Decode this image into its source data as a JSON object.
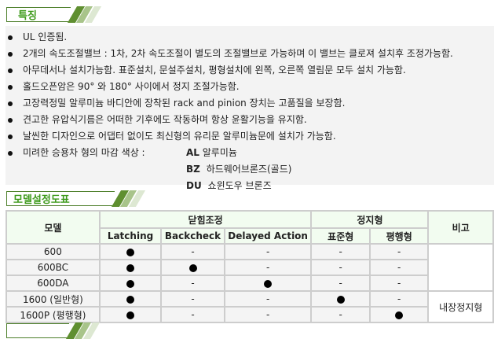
{
  "sections": {
    "features_title": "특징",
    "model_title": "모델설정도표",
    "next_title": ""
  },
  "colors": {
    "accent": "#3d9a1a",
    "border_green": "#4d7f2a",
    "stripe_dark": "#5f8f30",
    "stripe_mid": "#a8c48a",
    "stripe_light": "#dde8d2"
  },
  "features": [
    "UL 인증됨.",
    "2개의 속도조절밸브 : 1차, 2차 속도조절이 별도의 조절밸브로 가능하며 이 밸브는 클로져 설치후 조정가능함.",
    "아무데서나 설치가능함. 표준설치, 문설주설치, 평형설치에 왼쪽, 오른쪽 열림문 모두 설치 가능함.",
    "홀드오픈암은 90° 와 180° 사이에서 정지 조절가능함.",
    "고장력정밀 알루미늄 바디안에 장착된 rack and pinion 장치는 고품질을 보장함.",
    "견고한 유압식기름은 어떠한 기후에도 작동하며 항상 윤활기능을 유지함.",
    "날씬한 디자인으로 어댑터 없이도 최신형의 유리문 알루미늄문에 설치가 가능함.",
    "미려한 승용차 형의 마감 색상 :"
  ],
  "finish_colors": [
    {
      "code": "AL",
      "name": "알루미늄"
    },
    {
      "code": "BZ",
      "name": "하드웨어브론즈(골드)"
    },
    {
      "code": "DU",
      "name": "쇼윈도우 브론즈"
    }
  ],
  "table": {
    "headers": {
      "model": "모델",
      "closing": "닫힘조정",
      "hold": "정지형",
      "note": "비고",
      "sub": [
        "Latching",
        "Backcheck",
        "Delayed Action",
        "표준형",
        "평행형"
      ]
    },
    "rows": [
      {
        "model": "600",
        "cells": [
          true,
          false,
          false,
          false,
          false
        ]
      },
      {
        "model": "600BC",
        "cells": [
          true,
          true,
          false,
          false,
          false
        ]
      },
      {
        "model": "600DA",
        "cells": [
          true,
          false,
          true,
          false,
          false
        ]
      },
      {
        "model": "1600 (일반형)",
        "cells": [
          true,
          false,
          false,
          true,
          false
        ]
      },
      {
        "model": "1600P (평행형)",
        "cells": [
          true,
          false,
          false,
          false,
          true
        ]
      }
    ],
    "dash": "-",
    "note_group2": "내장정지형"
  }
}
